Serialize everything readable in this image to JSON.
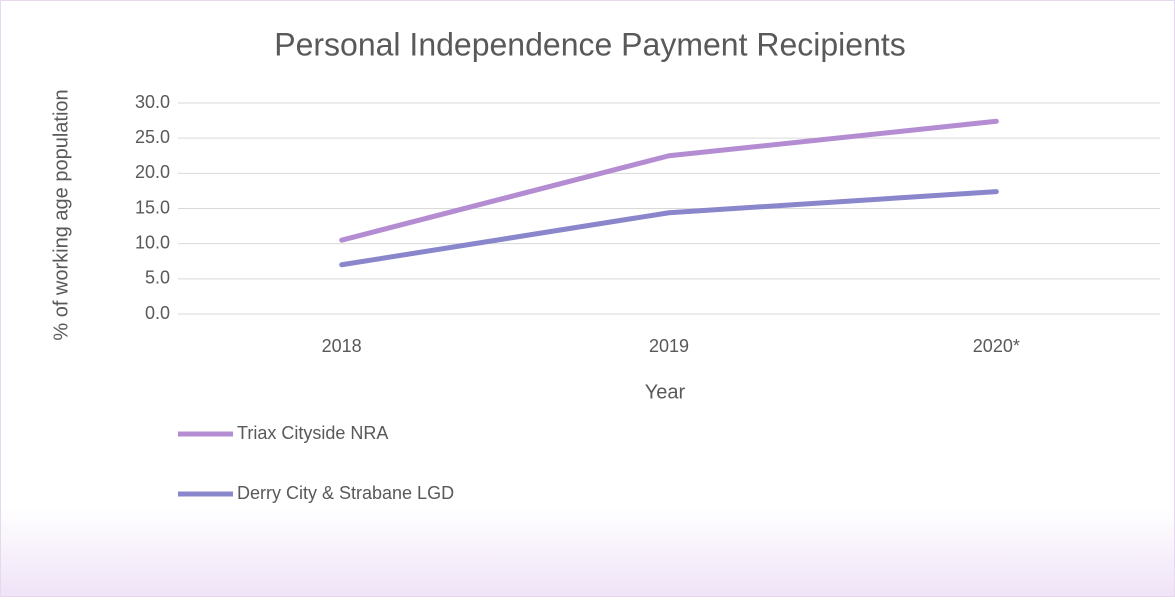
{
  "chart_data": {
    "type": "line",
    "title": "Personal Independence Payment Recipients",
    "x_label": "Year",
    "y_label": "% of working age population",
    "categories": [
      "2018",
      "2019",
      "2020*"
    ],
    "series": [
      {
        "name": "Triax Cityside NRA",
        "color": "#b48cd2",
        "values": [
          10.5,
          22.5,
          27.4
        ]
      },
      {
        "name": "Derry City & Strabane LGD",
        "color": "#8a86cc",
        "values": [
          7.0,
          14.4,
          17.4
        ]
      }
    ],
    "ylim": [
      0,
      30
    ],
    "yticks": [
      {
        "value": 0,
        "label": "0.0"
      },
      {
        "value": 5,
        "label": "5.0"
      },
      {
        "value": 10,
        "label": "10.0"
      },
      {
        "value": 15,
        "label": "15.0"
      },
      {
        "value": 20,
        "label": "20.0"
      },
      {
        "value": 25,
        "label": "25.0"
      },
      {
        "value": 30,
        "label": "30.0"
      }
    ],
    "grid": true,
    "legend": "bottom-left"
  }
}
